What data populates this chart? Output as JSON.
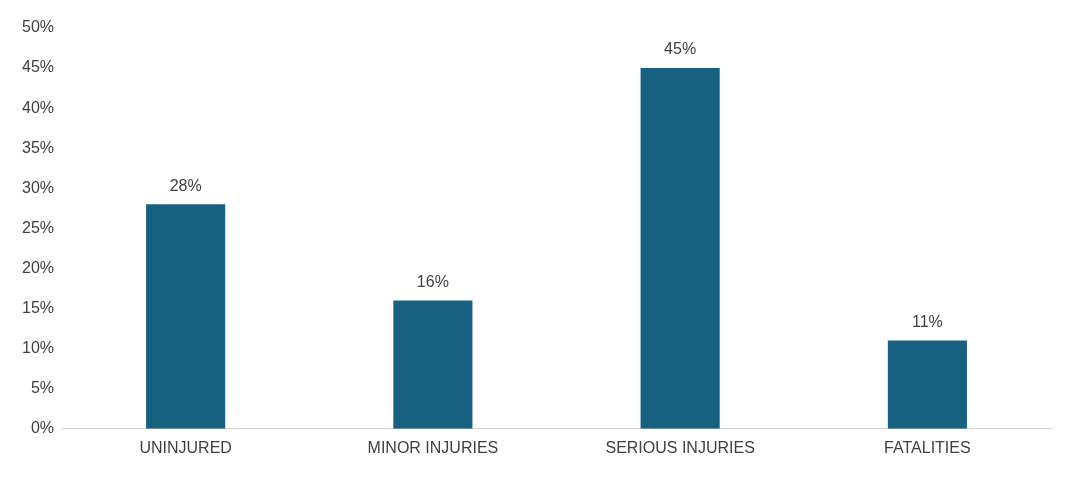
{
  "chart_data": {
    "type": "bar",
    "categories": [
      "UNINJURED",
      "MINOR INJURIES",
      "SERIOUS INJURIES",
      "FATALITIES"
    ],
    "values": [
      28,
      16,
      45,
      11
    ],
    "color": "#17607f",
    "value_labels": [
      "28%",
      "16%",
      "45%",
      "11%"
    ],
    "ylim": [
      0,
      50
    ],
    "yticks": [
      {
        "value": 0,
        "label": "0%"
      },
      {
        "value": 5,
        "label": "5%"
      },
      {
        "value": 10,
        "label": "10%"
      },
      {
        "value": 15,
        "label": "15%"
      },
      {
        "value": 20,
        "label": "20%"
      },
      {
        "value": 25,
        "label": "25%"
      },
      {
        "value": 30,
        "label": "30%"
      },
      {
        "value": 35,
        "label": "35%"
      },
      {
        "value": 40,
        "label": "40%"
      },
      {
        "value": 45,
        "label": "45%"
      },
      {
        "value": 50,
        "label": "50%"
      }
    ],
    "grid": false,
    "legend": false
  }
}
